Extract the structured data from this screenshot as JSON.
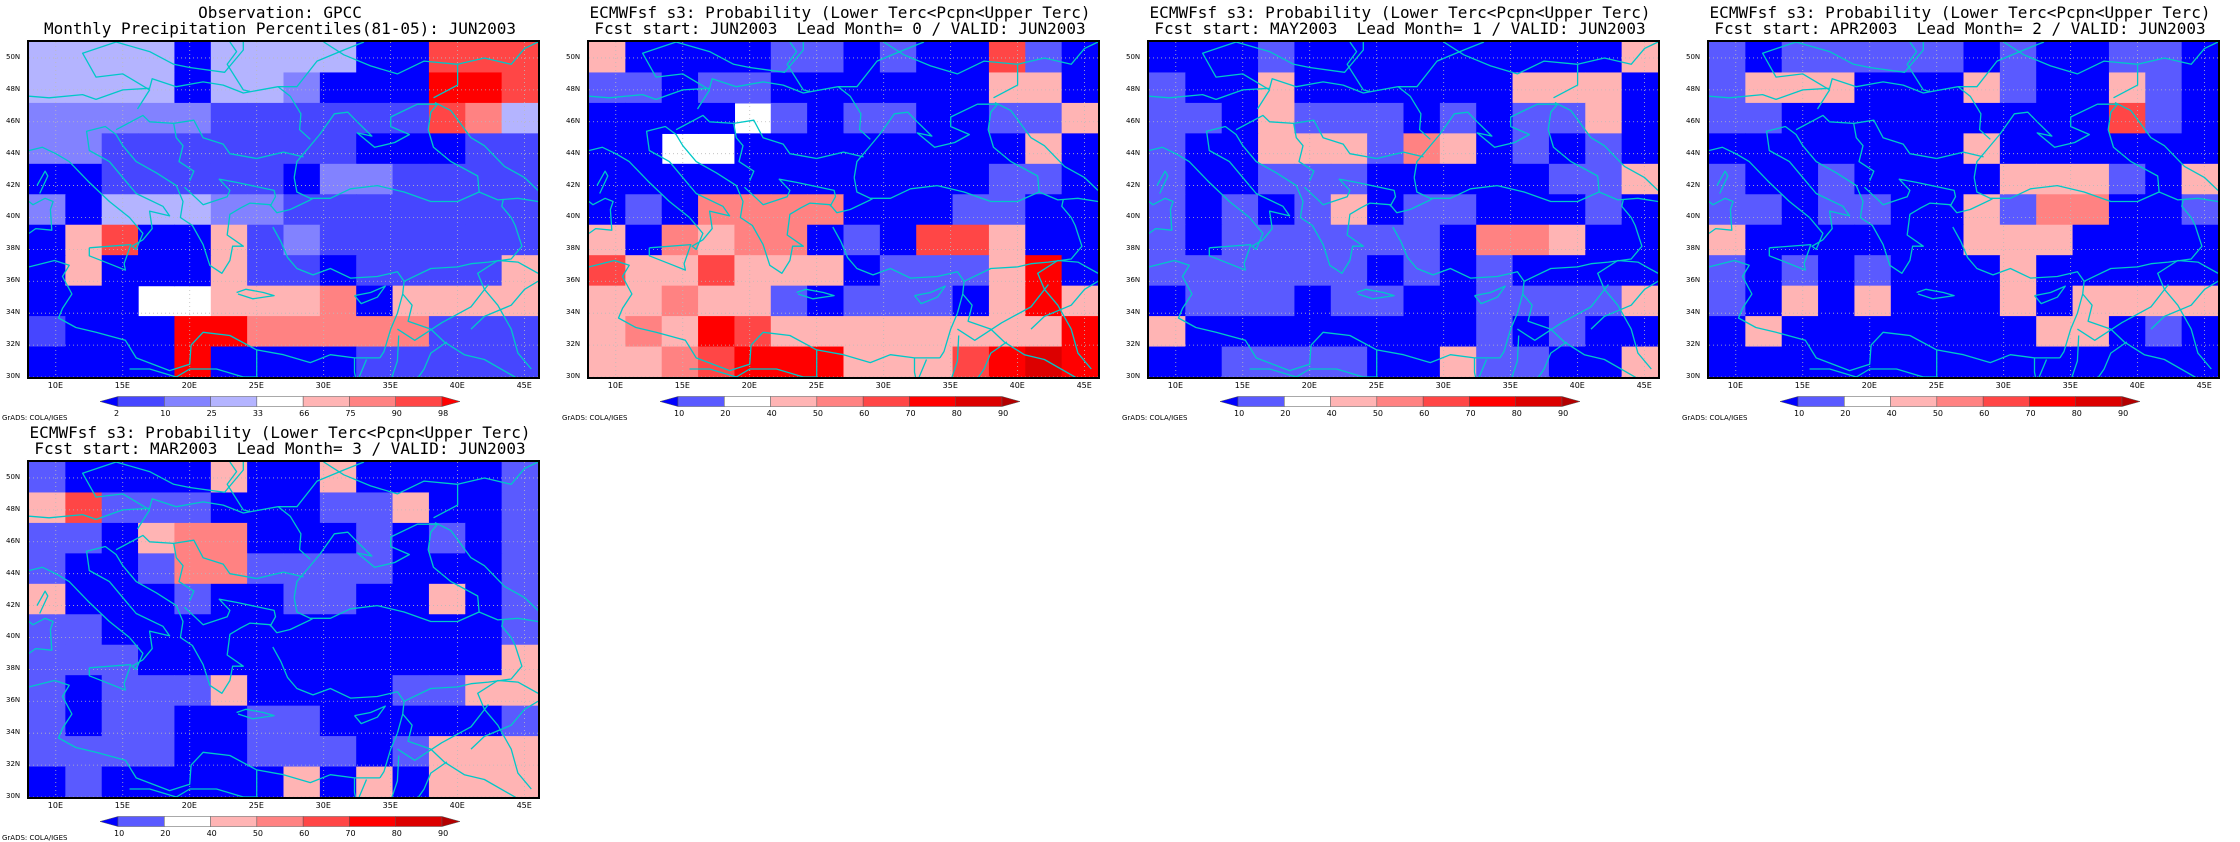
{
  "colors": {
    "missing": "#ffffff",
    "coast": "#00c8c8",
    "grid_lines": "#bbbbbb"
  },
  "map_axes": {
    "lat_ticks": [
      "50N",
      "48N",
      "46N",
      "44N",
      "42N",
      "40N",
      "38N",
      "36N",
      "34N",
      "32N",
      "30N"
    ],
    "lon_ticks": [
      "10E",
      "15E",
      "20E",
      "25E",
      "30E",
      "35E",
      "40E",
      "45E"
    ],
    "lon_range": [
      8,
      46
    ],
    "lat_range": [
      30,
      51
    ]
  },
  "colorbars": {
    "percentile": {
      "labels": [
        "2",
        "10",
        "25",
        "33",
        "66",
        "75",
        "90",
        "98"
      ],
      "colors": [
        "#0000ff",
        "#4646ff",
        "#8282ff",
        "#b4b4ff",
        "#ffffff",
        "#ffb4b4",
        "#ff8282",
        "#ff4646",
        "#ff0000"
      ]
    },
    "probability": {
      "labels": [
        "10",
        "20",
        "40",
        "50",
        "60",
        "70",
        "80",
        "90"
      ],
      "colors": [
        "#0000ff",
        "#5a5aff",
        "#ffffff",
        "#ffb4b4",
        "#ff8282",
        "#ff4646",
        "#ff0000",
        "#dc0000",
        "#b40000"
      ]
    }
  },
  "credit": "GrADS: COLA/IGES",
  "panels": [
    {
      "title1": "Observation: GPCC",
      "title2": "Monthly Precipitation Percentiles(81-05): JUN2003",
      "colorbar": "percentile",
      "grid": [
        "33330333300777",
        "33330332000887",
        "22222111111763",
        "22111111100011",
        "00111110221111",
        "20333221111111",
        "05700512111111",
        "05000511011115",
        "00044555605555",
        "10008866666111",
        "00008000011111"
      ]
    },
    {
      "title1": "ECMWFsf s3: Probability (Lower Terc<Pcpn<Upper Terc)",
      "title2": "Fcst start: JUN2003  Lead Month= 0 / VALID: JUN2003",
      "colorbar": "probability",
      "grid": [
        "30000110100510",
        "11011000000330",
        "00002101100113",
        "00220000000030",
        "00000000000110",
        "01044440001100",
        "30434401055300",
        "53353330111360",
        "33433101110363",
        "34365333333336",
        "33456663335676"
      ]
    },
    {
      "title1": "ECMWFsf s3: Probability (Lower Terc<Pcpn<Upper Terc)",
      "title2": "Fcst start: MAY2003  Lead Month= 1 / VALID: JUN2003",
      "colorbar": "probability",
      "grid": [
        "00010000000003",
        "10030000003330",
        "11031110101130",
        "10033314301010",
        "10011100000113",
        "10101301100010",
        "10111111044300",
        "11111101010000",
        "01110110011113",
        "30000000010100",
        "00111100311003"
      ]
    },
    {
      "title1": "ECMWFsf s3: Probability (Lower Terc<Pcpn<Upper Terc)",
      "title2": "Fcst start: APR2003  Lead Month= 2 / VALID: JUN2003",
      "colorbar": "probability",
      "grid": [
        "10111110100110",
        "13330003100310",
        "11000000000510",
        "00000003000000",
        "10010000333103",
        "11011003144001",
        "30000003330000",
        "10101000300000",
        "10303000303333",
        "03000000033010",
        "00000000000000"
      ]
    },
    {
      "title1": "ECMWFsf s3: Probability (Lower Terc<Pcpn<Upper Terc)",
      "title2": "Fcst start: MAR2003  Lead Month= 3 / VALID: JUN2003",
      "colorbar": "probability",
      "grid": [
        "10000300300001",
        "35111000113001",
        "11034400010101",
        "10014411110001",
        "30001001100301",
        "11000000000001",
        "11100000000003",
        "10111300001133",
        "10110011000001",
        "11110011101333",
        "01000003030333"
      ]
    }
  ]
}
